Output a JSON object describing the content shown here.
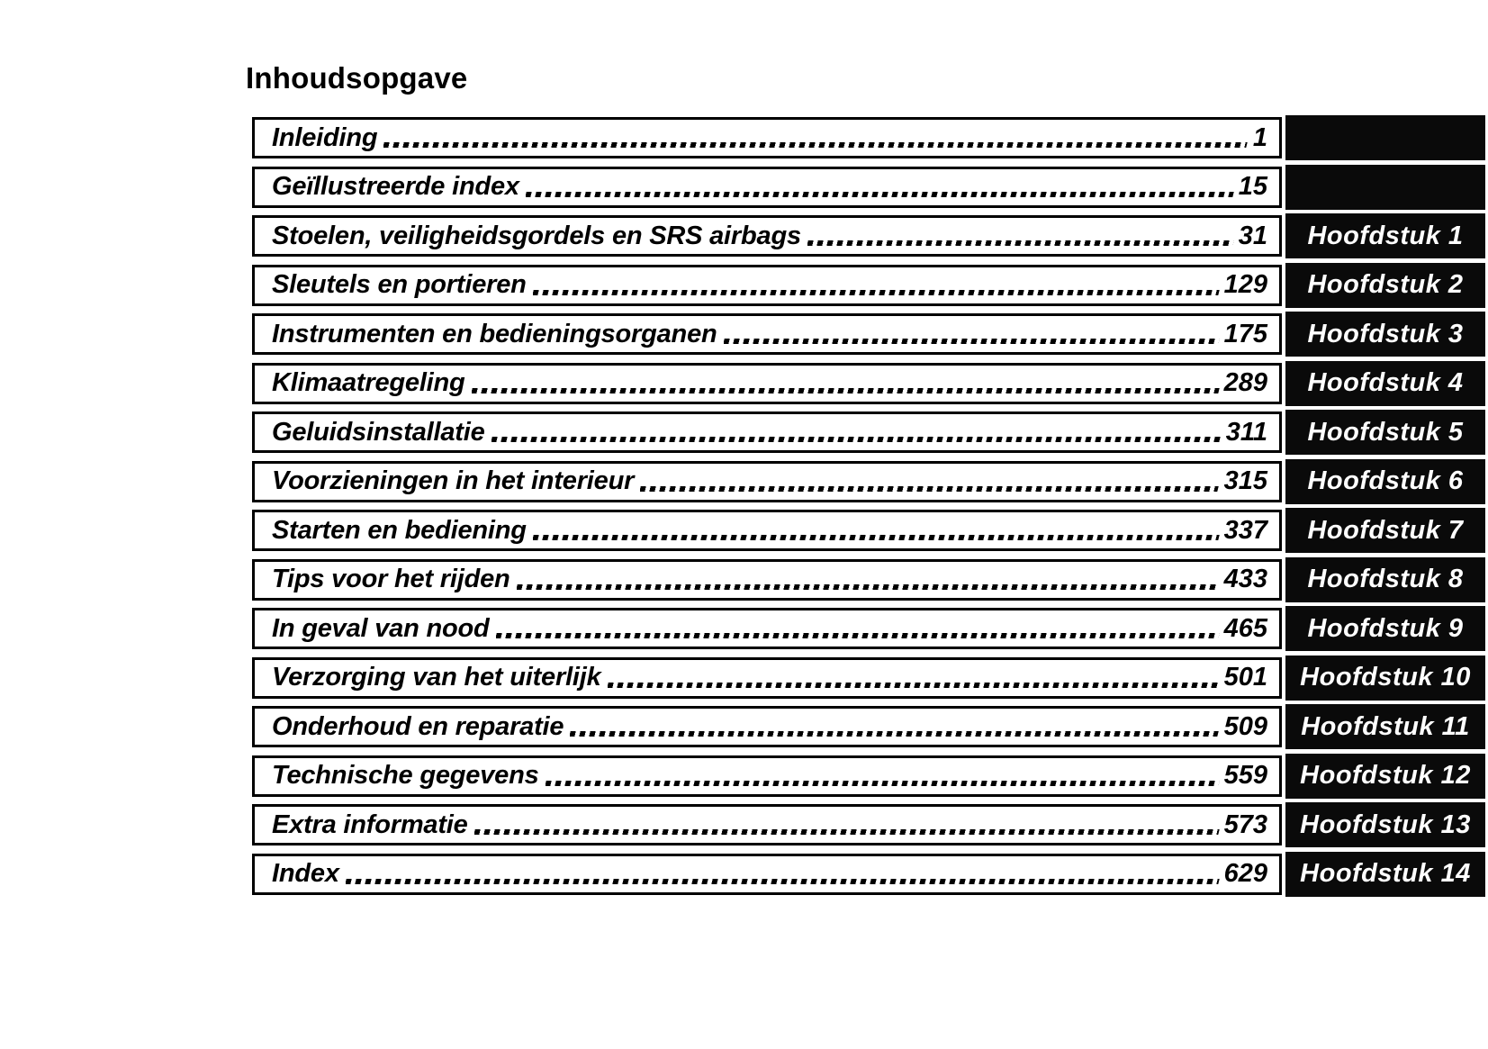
{
  "page_title": "Inhoudsopgave",
  "colors": {
    "ink": "#000000",
    "paper": "#ffffff",
    "tab_background": "#0a0a0a",
    "tab_text": "#ffffff"
  },
  "toc": {
    "rows": [
      {
        "title": "Inleiding",
        "page": "1",
        "chapter": ""
      },
      {
        "title": "Geïllustreerde index",
        "page": "15",
        "chapter": ""
      },
      {
        "title": "Stoelen, veiligheidsgordels en SRS airbags",
        "page": "31",
        "chapter": "Hoofdstuk 1"
      },
      {
        "title": "Sleutels en portieren",
        "page": "129",
        "chapter": "Hoofdstuk 2"
      },
      {
        "title": "Instrumenten en bedieningsorganen",
        "page": "175",
        "chapter": "Hoofdstuk 3"
      },
      {
        "title": "Klimaatregeling",
        "page": "289",
        "chapter": "Hoofdstuk 4"
      },
      {
        "title": "Geluidsinstallatie",
        "page": "311",
        "chapter": "Hoofdstuk 5"
      },
      {
        "title": "Voorzieningen in het interieur",
        "page": "315",
        "chapter": "Hoofdstuk 6"
      },
      {
        "title": "Starten en bediening",
        "page": "337",
        "chapter": "Hoofdstuk 7"
      },
      {
        "title": "Tips voor het rijden",
        "page": "433",
        "chapter": "Hoofdstuk 8"
      },
      {
        "title": "In geval van nood",
        "page": "465",
        "chapter": "Hoofdstuk 9"
      },
      {
        "title": "Verzorging van het uiterlijk",
        "page": "501",
        "chapter": "Hoofdstuk 10"
      },
      {
        "title": "Onderhoud en reparatie",
        "page": "509",
        "chapter": "Hoofdstuk 11"
      },
      {
        "title": "Technische gegevens",
        "page": "559",
        "chapter": "Hoofdstuk 12"
      },
      {
        "title": "Extra informatie",
        "page": "573",
        "chapter": "Hoofdstuk 13"
      },
      {
        "title": "Index",
        "page": "629",
        "chapter": "Hoofdstuk 14"
      }
    ]
  }
}
